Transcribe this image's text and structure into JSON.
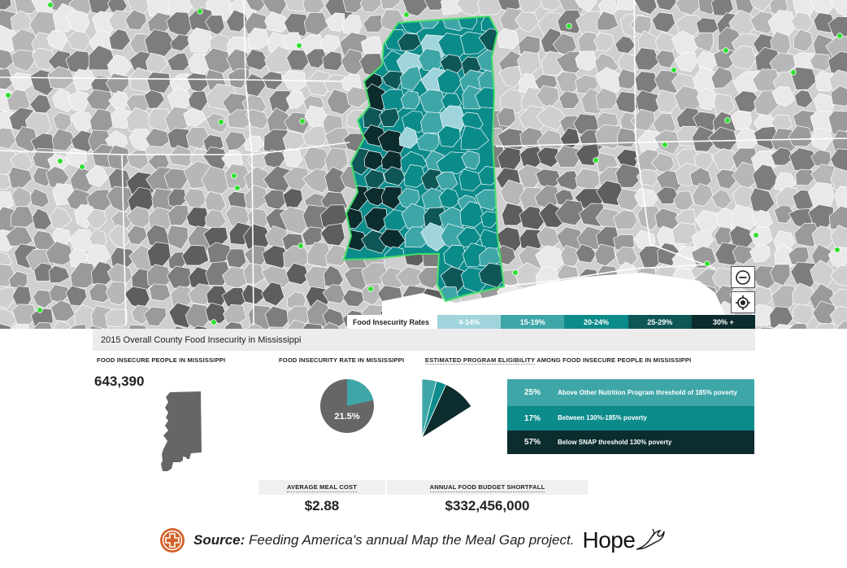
{
  "map": {
    "colors": {
      "gray_1": "#e9e9e9",
      "gray_2": "#cfcfcf",
      "gray_3": "#b7b7b7",
      "gray_4": "#9a9a9a",
      "gray_5": "#7d7d7d",
      "gray_6": "#5e5e5e",
      "state_border": "#ffffff",
      "county_border": "#ffffff",
      "highlight_outline": "#43e06a",
      "marker": "#2ee02e"
    },
    "zoom_out_icon": "minus-circle-icon",
    "locate_icon": "crosshair-icon"
  },
  "legend": {
    "title": "Food Insecurity Rates",
    "items": [
      {
        "label": "4-14%",
        "color": "#9fd4dc"
      },
      {
        "label": "15-19%",
        "color": "#3fa6a8"
      },
      {
        "label": "20-24%",
        "color": "#0c8b8b"
      },
      {
        "label": "25-29%",
        "color": "#0f5757"
      },
      {
        "label": "30% +",
        "color": "#0c2c2e"
      }
    ]
  },
  "panel": {
    "title": "2015 Overall County Food Insecurity in Mississippi",
    "people": {
      "label": "FOOD INSECURE PEOPLE IN MISSISSIPPI",
      "value": "643,390",
      "silhouette_color": "#666666"
    },
    "rate": {
      "label": "FOOD INSECURITY RATE IN MISSISSIPPI",
      "value_label": "21.5%",
      "value": 21.5,
      "highlight_color": "#3fa6a8",
      "rest_color": "#666666"
    },
    "eligibility": {
      "label_main": "ESTIMATED PROGRAM ELIGIBILITY",
      "label_rest": " AMONG FOOD INSECURE PEOPLE IN MISSISSIPPI",
      "rows": [
        {
          "pct": "25%",
          "value": 25,
          "desc": "Above Other Nutrition Program threshold of 185% poverty",
          "color": "#3fa6a8"
        },
        {
          "pct": "17%",
          "value": 17,
          "desc": "Between 130%-185% poverty",
          "color": "#0c8b8b"
        },
        {
          "pct": "57%",
          "value": 57,
          "desc": "Below SNAP threshold 130% poverty",
          "color": "#0c2c2e"
        }
      ]
    },
    "meal_cost": {
      "label": "AVERAGE MEAL COST",
      "value": "$2.88"
    },
    "shortfall": {
      "label": "ANNUAL FOOD BUDGET SHORTFALL",
      "value": "$332,456,000"
    }
  },
  "footer": {
    "source_bold": "Source:",
    "source_rest": " Feeding America's annual Map the Meal Gap project.",
    "logo_word": "Hope",
    "badge_color": "#d4622a"
  }
}
